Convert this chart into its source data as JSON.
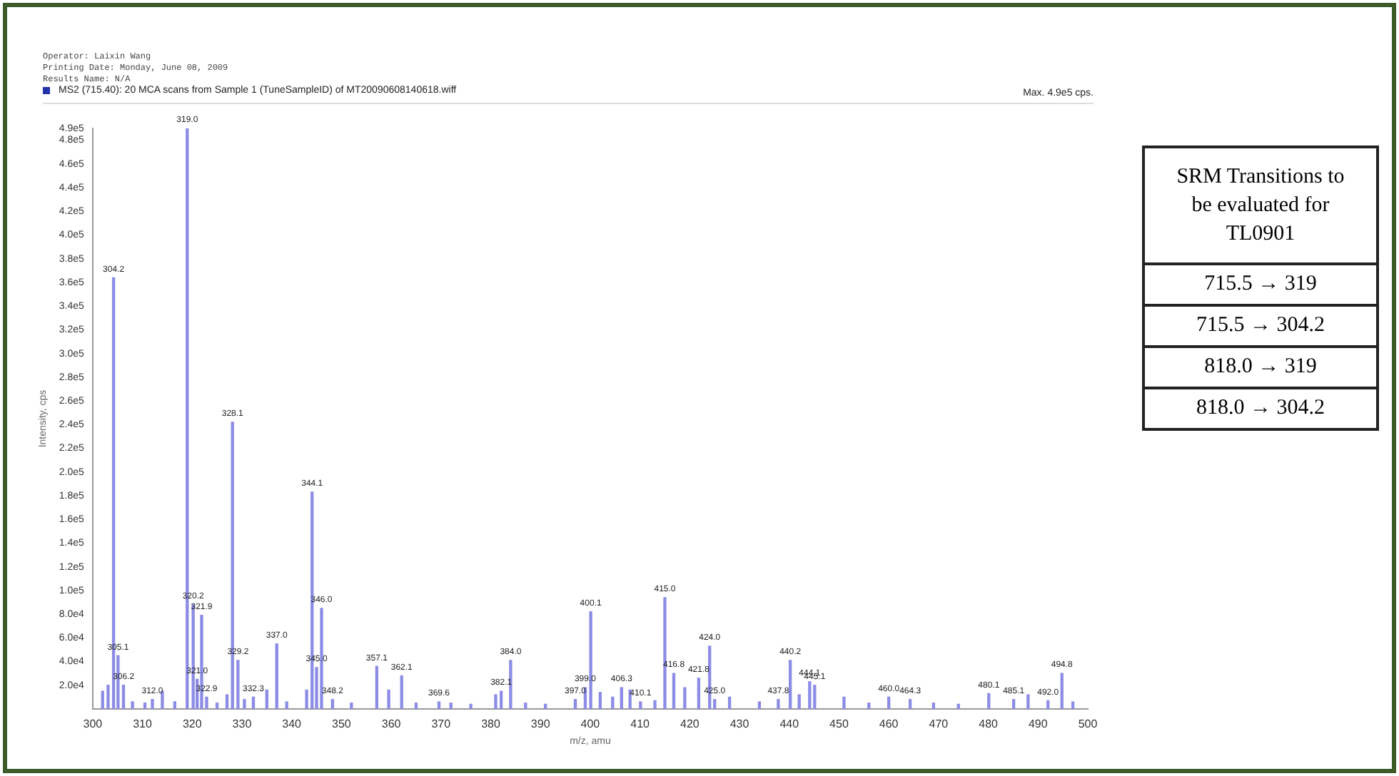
{
  "chart_data": [
    {
      "type": "bar",
      "title": "MS2 (715.40): 20 MCA scans from Sample 1 (TuneSampleID) of MT20090608140618.wiff",
      "xlabel": "m/z, amu",
      "ylabel": "Intensity, cps",
      "color": "#8c8ce6",
      "x": [
        302.0,
        303.1,
        304.2,
        305.1,
        306.2,
        308.0,
        310.5,
        312.0,
        314.0,
        316.5,
        319.0,
        320.2,
        321.0,
        321.9,
        322.9,
        325.0,
        327.0,
        328.1,
        329.2,
        330.5,
        332.3,
        335.0,
        337.0,
        339.0,
        343.0,
        344.1,
        345.0,
        346.0,
        348.2,
        352.0,
        357.1,
        359.5,
        362.1,
        365.0,
        369.6,
        372.0,
        376.0,
        381.0,
        382.1,
        384.0,
        387.0,
        391.0,
        397.0,
        399.0,
        400.1,
        402.0,
        404.5,
        406.3,
        408.0,
        410.1,
        413.0,
        415.0,
        416.8,
        419.0,
        421.8,
        424.0,
        425.0,
        428.0,
        434.0,
        437.8,
        440.2,
        442.0,
        444.1,
        445.1,
        451.0,
        456.0,
        460.0,
        464.3,
        469.0,
        474.0,
        480.1,
        485.1,
        488.0,
        492.0,
        494.8,
        497.0
      ],
      "values": [
        15000,
        20000,
        364000,
        45000,
        20000,
        6000,
        5000,
        8000,
        15000,
        6000,
        490000,
        88000,
        25000,
        79000,
        10000,
        5000,
        12000,
        242000,
        41000,
        8000,
        10000,
        16000,
        55000,
        6000,
        16000,
        183000,
        35000,
        85000,
        8000,
        5000,
        36000,
        16000,
        28000,
        5000,
        6000,
        5000,
        4000,
        12000,
        15000,
        41000,
        5000,
        4000,
        8000,
        18000,
        82000,
        14000,
        10000,
        18000,
        16000,
        6000,
        7000,
        94000,
        30000,
        18000,
        26000,
        53000,
        8000,
        10000,
        6000,
        8000,
        41000,
        12000,
        23000,
        20000,
        10000,
        5000,
        10000,
        8000,
        5000,
        4000,
        13000,
        8000,
        12000,
        7000,
        30000,
        6000
      ],
      "xlim": [
        300,
        500
      ],
      "xticks": [
        300,
        310,
        320,
        330,
        340,
        350,
        360,
        370,
        380,
        390,
        400,
        410,
        420,
        430,
        440,
        450,
        460,
        470,
        480,
        490,
        500
      ],
      "ylim": [
        0,
        490000
      ],
      "yticks": [
        {
          "value": 20000,
          "label": "2.0e4"
        },
        {
          "value": 40000,
          "label": "4.0e4"
        },
        {
          "value": 60000,
          "label": "6.0e4"
        },
        {
          "value": 80000,
          "label": "8.0e4"
        },
        {
          "value": 100000,
          "label": "1.0e5"
        },
        {
          "value": 120000,
          "label": "1.2e5"
        },
        {
          "value": 140000,
          "label": "1.4e5"
        },
        {
          "value": 160000,
          "label": "1.6e5"
        },
        {
          "value": 180000,
          "label": "1.8e5"
        },
        {
          "value": 200000,
          "label": "2.0e5"
        },
        {
          "value": 220000,
          "label": "2.2e5"
        },
        {
          "value": 240000,
          "label": "2.4e5"
        },
        {
          "value": 260000,
          "label": "2.6e5"
        },
        {
          "value": 280000,
          "label": "2.8e5"
        },
        {
          "value": 300000,
          "label": "3.0e5"
        },
        {
          "value": 320000,
          "label": "3.2e5"
        },
        {
          "value": 340000,
          "label": "3.4e5"
        },
        {
          "value": 360000,
          "label": "3.6e5"
        },
        {
          "value": 380000,
          "label": "3.8e5"
        },
        {
          "value": 400000,
          "label": "4.0e5"
        },
        {
          "value": 420000,
          "label": "4.2e5"
        },
        {
          "value": 440000,
          "label": "4.4e5"
        },
        {
          "value": 460000,
          "label": "4.6e5"
        },
        {
          "value": 480000,
          "label": "4.8e5"
        },
        {
          "value": 490000,
          "label": "4.9e5"
        }
      ],
      "grid": false,
      "legend": false,
      "annotations": [
        "Operator: Laixin Wang",
        "Printing Date: Monday, June 08, 2009",
        "Results Name: N/A",
        "Max. 4.9e5 cps.",
        {
          "text": "304.2",
          "x": 304.2,
          "y": 364000
        },
        {
          "text": "305.1",
          "x": 305.1,
          "y": 45000
        },
        {
          "text": "306.2",
          "x": 306.2,
          "y": 20000
        },
        {
          "text": "312.0",
          "x": 312.0,
          "y": 8000
        },
        {
          "text": "319.0",
          "x": 319.0,
          "y": 490000
        },
        {
          "text": "320.2",
          "x": 320.2,
          "y": 88000
        },
        {
          "text": "321.0",
          "x": 321.0,
          "y": 25000
        },
        {
          "text": "321.9",
          "x": 321.9,
          "y": 79000
        },
        {
          "text": "322.9",
          "x": 322.9,
          "y": 10000
        },
        {
          "text": "328.1",
          "x": 328.1,
          "y": 242000
        },
        {
          "text": "329.2",
          "x": 329.2,
          "y": 41000
        },
        {
          "text": "332.3",
          "x": 332.3,
          "y": 10000
        },
        {
          "text": "337.0",
          "x": 337.0,
          "y": 55000
        },
        {
          "text": "344.1",
          "x": 344.1,
          "y": 183000
        },
        {
          "text": "345.0",
          "x": 345.0,
          "y": 35000
        },
        {
          "text": "346.0",
          "x": 346.0,
          "y": 85000
        },
        {
          "text": "348.2",
          "x": 348.2,
          "y": 8000
        },
        {
          "text": "357.1",
          "x": 357.1,
          "y": 36000
        },
        {
          "text": "362.1",
          "x": 362.1,
          "y": 28000
        },
        {
          "text": "369.6",
          "x": 369.6,
          "y": 6000
        },
        {
          "text": "382.1",
          "x": 382.1,
          "y": 15000
        },
        {
          "text": "384.0",
          "x": 384.0,
          "y": 41000
        },
        {
          "text": "397.0",
          "x": 397.0,
          "y": 8000
        },
        {
          "text": "399.0",
          "x": 399.0,
          "y": 18000
        },
        {
          "text": "400.1",
          "x": 400.1,
          "y": 82000
        },
        {
          "text": "406.3",
          "x": 406.3,
          "y": 18000
        },
        {
          "text": "410.1",
          "x": 410.1,
          "y": 6000
        },
        {
          "text": "415.0",
          "x": 415.0,
          "y": 94000
        },
        {
          "text": "416.8",
          "x": 416.8,
          "y": 30000
        },
        {
          "text": "421.8",
          "x": 421.8,
          "y": 26000
        },
        {
          "text": "424.0",
          "x": 424.0,
          "y": 53000
        },
        {
          "text": "425.0",
          "x": 425.0,
          "y": 8000
        },
        {
          "text": "437.8",
          "x": 437.8,
          "y": 8000
        },
        {
          "text": "440.2",
          "x": 440.2,
          "y": 41000
        },
        {
          "text": "445.1",
          "x": 445.1,
          "y": 20000
        },
        {
          "text": "444.1",
          "x": 444.1,
          "y": 23000
        },
        {
          "text": "460.0",
          "x": 460.0,
          "y": 10000
        },
        {
          "text": "464.3",
          "x": 464.3,
          "y": 8000
        },
        {
          "text": "480.1",
          "x": 480.1,
          "y": 13000
        },
        {
          "text": "485.1",
          "x": 485.1,
          "y": 8000
        },
        {
          "text": "494.8",
          "x": 494.8,
          "y": 30000
        },
        {
          "text": "492.0",
          "x": 492.0,
          "y": 7000
        }
      ]
    },
    {
      "type": "other",
      "title": "SRM Transitions to be evaluated for TL0901",
      "annotations": [
        "715.5 → 319",
        "715.5 → 304.2",
        "818.0 → 319",
        "818.0 → 304.2"
      ]
    }
  ]
}
